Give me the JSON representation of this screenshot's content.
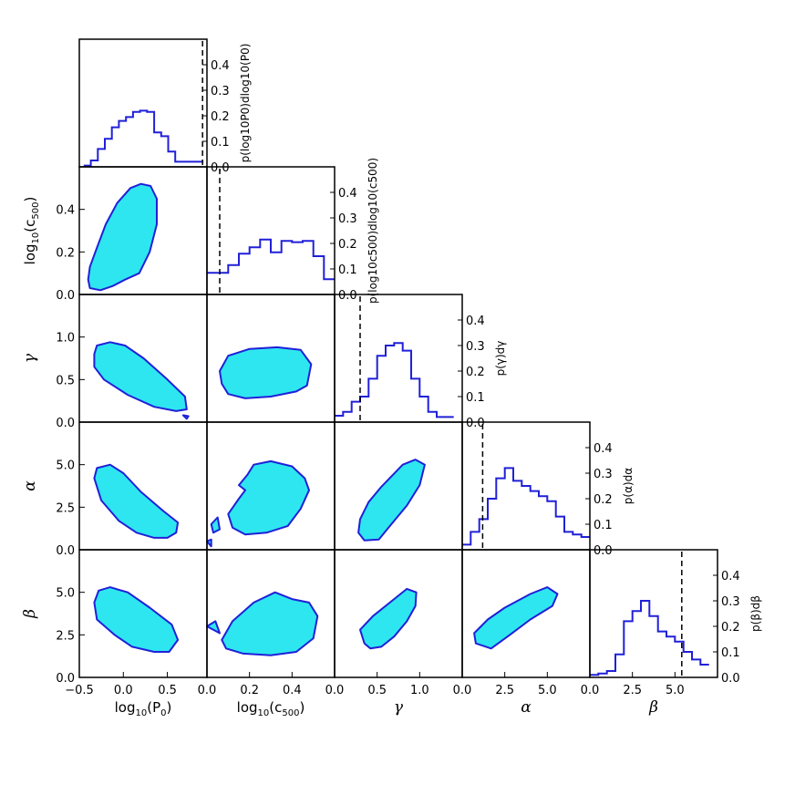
{
  "chart_data": {
    "type": "corner-plot",
    "parameters": [
      "log10(P0)",
      "log10(c500)",
      "γ",
      "α",
      "β"
    ],
    "axis_labels": {
      "log10_P0": {
        "base": "log",
        "sub": "10",
        "body": "(P",
        "sub2": "0",
        "tail": ")"
      },
      "log10_c500": {
        "base": "log",
        "sub": "10",
        "body": "(c",
        "sub2": "500",
        "tail": ")"
      },
      "gamma": "γ",
      "alpha": "α",
      "beta": "β"
    },
    "ranges": {
      "log10_P0": [
        -0.5,
        0.95
      ],
      "log10_c500": [
        0.0,
        0.6
      ],
      "gamma": [
        0.0,
        1.5
      ],
      "alpha": [
        0.0,
        7.5
      ],
      "beta": [
        0.0,
        7.5
      ]
    },
    "tick_labels": {
      "x": {
        "log10_P0": [
          "−0.5",
          "0.0",
          "0.5"
        ],
        "log10_c500": [
          "0.0",
          "0.2",
          "0.4"
        ],
        "gamma": [
          "0.0",
          "0.5",
          "1.0"
        ],
        "alpha": [
          "0.0",
          "2.5",
          "5.0"
        ],
        "beta": [
          "0.0",
          "2.5",
          "5.0"
        ]
      },
      "y": {
        "log10_c500": [
          "0.0",
          "0.2",
          "0.4"
        ],
        "gamma": [
          "0.0",
          "0.5",
          "1.0"
        ],
        "alpha": [
          "0.0",
          "2.5",
          "5.0"
        ],
        "beta": [
          "0.0",
          "2.5",
          "5.0"
        ]
      },
      "marginal": [
        "0.0",
        "0.1",
        "0.2",
        "0.3",
        "0.4"
      ]
    },
    "marginal_labels": [
      "p(log10P0)dlog10(P0)",
      "p(log10c500)dlog10(c500)",
      "p(γ)dγ",
      "p(α)dα",
      "p(β)dβ"
    ],
    "marginals": [
      {
        "param": "log10_P0",
        "bin_edges": [
          -0.45,
          -0.37,
          -0.29,
          -0.21,
          -0.13,
          -0.05,
          0.03,
          0.11,
          0.19,
          0.27,
          0.35,
          0.43,
          0.51,
          0.59,
          0.67,
          0.75,
          0.83,
          0.91
        ],
        "values": [
          0.005,
          0.025,
          0.07,
          0.11,
          0.155,
          0.18,
          0.195,
          0.215,
          0.22,
          0.215,
          0.135,
          0.12,
          0.06,
          0.02,
          0.02,
          0.02,
          0.02
        ],
        "reference": 0.9
      },
      {
        "param": "log10_c500",
        "bin_edges": [
          0.0,
          0.05,
          0.1,
          0.15,
          0.2,
          0.25,
          0.3,
          0.35,
          0.4,
          0.45,
          0.5,
          0.55,
          0.6
        ],
        "values": [
          0.085,
          0.085,
          0.115,
          0.16,
          0.185,
          0.215,
          0.165,
          0.21,
          0.205,
          0.21,
          0.15,
          0.06
        ],
        "reference": 0.06
      },
      {
        "param": "gamma",
        "bin_edges": [
          0.0,
          0.1,
          0.2,
          0.3,
          0.4,
          0.5,
          0.6,
          0.7,
          0.8,
          0.9,
          1.0,
          1.1,
          1.2,
          1.3,
          1.4
        ],
        "values": [
          0.025,
          0.04,
          0.08,
          0.1,
          0.17,
          0.26,
          0.3,
          0.31,
          0.28,
          0.17,
          0.1,
          0.04,
          0.02,
          0.02
        ],
        "reference": 0.3
      },
      {
        "param": "alpha",
        "bin_edges": [
          0.0,
          0.5,
          1.0,
          1.5,
          2.0,
          2.5,
          3.0,
          3.5,
          4.0,
          4.5,
          5.0,
          5.5,
          6.0,
          6.5,
          7.0,
          7.5
        ],
        "values": [
          0.02,
          0.07,
          0.12,
          0.2,
          0.28,
          0.32,
          0.27,
          0.25,
          0.23,
          0.21,
          0.19,
          0.13,
          0.07,
          0.06,
          0.05
        ],
        "reference": 1.2
      },
      {
        "param": "beta",
        "bin_edges": [
          0.0,
          0.5,
          1.0,
          1.5,
          2.0,
          2.5,
          3.0,
          3.5,
          4.0,
          4.5,
          5.0,
          5.5,
          6.0,
          6.5,
          7.0
        ],
        "values": [
          0.01,
          0.015,
          0.025,
          0.09,
          0.22,
          0.26,
          0.3,
          0.24,
          0.18,
          0.16,
          0.14,
          0.1,
          0.07,
          0.05
        ],
        "reference": 5.4
      }
    ],
    "contours": [
      {
        "x": "log10_P0",
        "y": "log10_c500",
        "regions": [
          [
            [
              -0.38,
              0.03
            ],
            [
              -0.4,
              0.07
            ],
            [
              -0.38,
              0.13
            ],
            [
              -0.3,
              0.22
            ],
            [
              -0.2,
              0.33
            ],
            [
              -0.07,
              0.43
            ],
            [
              0.08,
              0.5
            ],
            [
              0.2,
              0.52
            ],
            [
              0.31,
              0.51
            ],
            [
              0.38,
              0.45
            ],
            [
              0.38,
              0.33
            ],
            [
              0.3,
              0.2
            ],
            [
              0.18,
              0.1
            ],
            [
              0.02,
              0.07
            ],
            [
              -0.12,
              0.04
            ],
            [
              -0.26,
              0.02
            ]
          ]
        ]
      },
      {
        "x": "log10_P0",
        "y": "gamma",
        "regions": [
          [
            [
              -0.33,
              0.8
            ],
            [
              -0.3,
              0.9
            ],
            [
              -0.15,
              0.94
            ],
            [
              0.02,
              0.9
            ],
            [
              0.23,
              0.75
            ],
            [
              0.5,
              0.5
            ],
            [
              0.7,
              0.3
            ],
            [
              0.72,
              0.15
            ],
            [
              0.6,
              0.13
            ],
            [
              0.35,
              0.18
            ],
            [
              0.05,
              0.32
            ],
            [
              -0.22,
              0.5
            ],
            [
              -0.33,
              0.65
            ]
          ],
          [
            [
              0.68,
              0.08
            ],
            [
              0.72,
              0.04
            ],
            [
              0.74,
              0.07
            ]
          ]
        ]
      },
      {
        "x": "log10_c500",
        "y": "gamma",
        "regions": [
          [
            [
              0.06,
              0.6
            ],
            [
              0.1,
              0.78
            ],
            [
              0.2,
              0.86
            ],
            [
              0.33,
              0.88
            ],
            [
              0.44,
              0.85
            ],
            [
              0.49,
              0.68
            ],
            [
              0.47,
              0.43
            ],
            [
              0.42,
              0.36
            ],
            [
              0.3,
              0.3
            ],
            [
              0.18,
              0.28
            ],
            [
              0.1,
              0.33
            ],
            [
              0.07,
              0.45
            ]
          ]
        ]
      },
      {
        "x": "gamma",
        "y": "alpha",
        "regions": [
          [
            [
              0.35,
              0.55
            ],
            [
              0.28,
              1.0
            ],
            [
              0.3,
              1.8
            ],
            [
              0.4,
              2.8
            ],
            [
              0.55,
              3.7
            ],
            [
              0.8,
              5.0
            ],
            [
              0.95,
              5.3
            ],
            [
              1.06,
              5.0
            ],
            [
              1.0,
              3.8
            ],
            [
              0.85,
              2.6
            ],
            [
              0.65,
              1.4
            ],
            [
              0.52,
              0.6
            ]
          ]
        ]
      },
      {
        "x": "log10_P0",
        "y": "alpha",
        "regions": [
          [
            [
              -0.33,
              4.2
            ],
            [
              -0.3,
              4.8
            ],
            [
              -0.15,
              5.0
            ],
            [
              0.0,
              4.5
            ],
            [
              0.2,
              3.4
            ],
            [
              0.45,
              2.3
            ],
            [
              0.62,
              1.6
            ],
            [
              0.6,
              1.0
            ],
            [
              0.5,
              0.7
            ],
            [
              0.35,
              0.7
            ],
            [
              0.15,
              1.0
            ],
            [
              -0.05,
              1.7
            ],
            [
              -0.25,
              2.9
            ]
          ]
        ]
      },
      {
        "x": "log10_c500",
        "y": "alpha",
        "regions": [
          [
            [
              0.19,
              4.4
            ],
            [
              0.22,
              5.0
            ],
            [
              0.3,
              5.2
            ],
            [
              0.4,
              4.9
            ],
            [
              0.46,
              4.2
            ],
            [
              0.48,
              3.5
            ],
            [
              0.44,
              2.4
            ],
            [
              0.38,
              1.4
            ],
            [
              0.28,
              1.0
            ],
            [
              0.18,
              0.9
            ],
            [
              0.12,
              1.3
            ],
            [
              0.1,
              2.1
            ],
            [
              0.15,
              3.0
            ],
            [
              0.18,
              3.5
            ],
            [
              0.15,
              3.8
            ]
          ],
          [
            [
              0.02,
              1.5
            ],
            [
              0.05,
              1.9
            ],
            [
              0.06,
              1.2
            ],
            [
              0.03,
              1.0
            ]
          ],
          [
            [
              0.0,
              0.5
            ],
            [
              0.02,
              0.6
            ],
            [
              0.02,
              0.2
            ]
          ]
        ]
      },
      {
        "x": "log10_P0",
        "y": "beta",
        "regions": [
          [
            [
              -0.33,
              4.4
            ],
            [
              -0.28,
              5.1
            ],
            [
              -0.15,
              5.3
            ],
            [
              0.05,
              5.0
            ],
            [
              0.3,
              4.1
            ],
            [
              0.55,
              3.1
            ],
            [
              0.62,
              2.2
            ],
            [
              0.52,
              1.5
            ],
            [
              0.35,
              1.5
            ],
            [
              0.1,
              1.8
            ],
            [
              -0.1,
              2.5
            ],
            [
              -0.3,
              3.4
            ]
          ]
        ]
      },
      {
        "x": "log10_c500",
        "y": "beta",
        "regions": [
          [
            [
              0.07,
              2.2
            ],
            [
              0.12,
              3.3
            ],
            [
              0.22,
              4.4
            ],
            [
              0.32,
              5.0
            ],
            [
              0.4,
              4.6
            ],
            [
              0.48,
              4.4
            ],
            [
              0.52,
              3.6
            ],
            [
              0.5,
              2.3
            ],
            [
              0.42,
              1.5
            ],
            [
              0.3,
              1.3
            ],
            [
              0.17,
              1.4
            ],
            [
              0.09,
              1.7
            ]
          ],
          [
            [
              0.0,
              3.0
            ],
            [
              0.04,
              3.3
            ],
            [
              0.06,
              2.6
            ]
          ]
        ]
      },
      {
        "x": "gamma",
        "y": "beta",
        "regions": [
          [
            [
              0.35,
              2.0
            ],
            [
              0.3,
              2.8
            ],
            [
              0.45,
              3.6
            ],
            [
              0.7,
              4.6
            ],
            [
              0.85,
              5.2
            ],
            [
              0.96,
              5.0
            ],
            [
              0.95,
              4.2
            ],
            [
              0.85,
              3.3
            ],
            [
              0.7,
              2.4
            ],
            [
              0.55,
              1.8
            ],
            [
              0.42,
              1.7
            ]
          ]
        ]
      },
      {
        "x": "alpha",
        "y": "beta",
        "regions": [
          [
            [
              0.8,
              2.0
            ],
            [
              0.7,
              2.6
            ],
            [
              1.5,
              3.4
            ],
            [
              2.5,
              4.1
            ],
            [
              4.0,
              4.9
            ],
            [
              5.0,
              5.3
            ],
            [
              5.6,
              4.9
            ],
            [
              5.3,
              4.2
            ],
            [
              4.0,
              3.4
            ],
            [
              2.8,
              2.5
            ],
            [
              1.7,
              1.7
            ]
          ]
        ]
      }
    ],
    "reference_lines": true,
    "grid": false
  }
}
